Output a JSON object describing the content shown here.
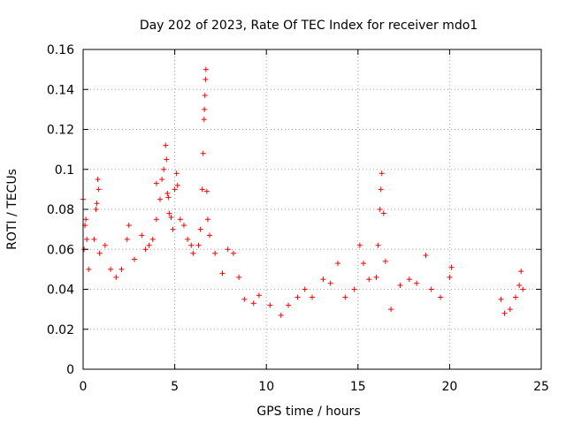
{
  "chart_data": {
    "type": "scatter",
    "title": "Day 202 of 2023, Rate Of TEC Index for receiver mdo1",
    "xlabel": "GPS time / hours",
    "ylabel": "ROTI / TECUs",
    "xlim": [
      0,
      25
    ],
    "ylim": [
      0,
      0.16
    ],
    "xticks": [
      0,
      5,
      10,
      15,
      20,
      25
    ],
    "xtick_labels": [
      "0",
      "5",
      "10",
      "15",
      "20",
      "25"
    ],
    "yticks": [
      0,
      0.02,
      0.04,
      0.06,
      0.08,
      0.1,
      0.12,
      0.14,
      0.16
    ],
    "ytick_labels": [
      "0",
      "0.02",
      "0.04",
      "0.06",
      "0.08",
      "0.1",
      "0.12",
      "0.14",
      "0.16"
    ],
    "grid": true,
    "marker": "plus",
    "color": "#ff0000",
    "series": [
      {
        "points": [
          [
            0.0,
            0.085
          ],
          [
            0.05,
            0.06
          ],
          [
            0.1,
            0.072
          ],
          [
            0.15,
            0.075
          ],
          [
            0.2,
            0.065
          ],
          [
            0.3,
            0.05
          ],
          [
            0.6,
            0.065
          ],
          [
            0.7,
            0.08
          ],
          [
            0.75,
            0.083
          ],
          [
            0.8,
            0.095
          ],
          [
            0.85,
            0.09
          ],
          [
            0.9,
            0.058
          ],
          [
            1.2,
            0.062
          ],
          [
            1.5,
            0.05
          ],
          [
            1.8,
            0.046
          ],
          [
            2.1,
            0.05
          ],
          [
            2.4,
            0.065
          ],
          [
            2.5,
            0.072
          ],
          [
            2.8,
            0.055
          ],
          [
            3.2,
            0.067
          ],
          [
            3.4,
            0.06
          ],
          [
            3.6,
            0.062
          ],
          [
            3.8,
            0.065
          ],
          [
            4.0,
            0.075
          ],
          [
            4.0,
            0.093
          ],
          [
            4.2,
            0.085
          ],
          [
            4.3,
            0.095
          ],
          [
            4.4,
            0.1
          ],
          [
            4.5,
            0.112
          ],
          [
            4.55,
            0.105
          ],
          [
            4.6,
            0.088
          ],
          [
            4.65,
            0.086
          ],
          [
            4.7,
            0.078
          ],
          [
            4.8,
            0.076
          ],
          [
            4.9,
            0.07
          ],
          [
            5.0,
            0.09
          ],
          [
            5.1,
            0.098
          ],
          [
            5.15,
            0.092
          ],
          [
            5.3,
            0.075
          ],
          [
            5.5,
            0.072
          ],
          [
            5.7,
            0.065
          ],
          [
            5.9,
            0.062
          ],
          [
            6.0,
            0.058
          ],
          [
            6.3,
            0.062
          ],
          [
            6.4,
            0.07
          ],
          [
            6.5,
            0.09
          ],
          [
            6.55,
            0.108
          ],
          [
            6.6,
            0.125
          ],
          [
            6.62,
            0.13
          ],
          [
            6.65,
            0.137
          ],
          [
            6.68,
            0.145
          ],
          [
            6.7,
            0.15
          ],
          [
            6.75,
            0.089
          ],
          [
            6.8,
            0.075
          ],
          [
            6.9,
            0.067
          ],
          [
            7.2,
            0.058
          ],
          [
            7.6,
            0.048
          ],
          [
            7.9,
            0.06
          ],
          [
            8.2,
            0.058
          ],
          [
            8.5,
            0.046
          ],
          [
            8.8,
            0.035
          ],
          [
            9.3,
            0.033
          ],
          [
            9.6,
            0.037
          ],
          [
            10.2,
            0.032
          ],
          [
            10.8,
            0.027
          ],
          [
            11.2,
            0.032
          ],
          [
            11.7,
            0.036
          ],
          [
            12.1,
            0.04
          ],
          [
            12.5,
            0.036
          ],
          [
            13.1,
            0.045
          ],
          [
            13.5,
            0.043
          ],
          [
            13.9,
            0.053
          ],
          [
            14.3,
            0.036
          ],
          [
            14.8,
            0.04
          ],
          [
            15.1,
            0.062
          ],
          [
            15.3,
            0.053
          ],
          [
            15.6,
            0.045
          ],
          [
            16.0,
            0.046
          ],
          [
            16.1,
            0.062
          ],
          [
            16.2,
            0.08
          ],
          [
            16.25,
            0.09
          ],
          [
            16.3,
            0.098
          ],
          [
            16.4,
            0.078
          ],
          [
            16.5,
            0.054
          ],
          [
            16.8,
            0.03
          ],
          [
            17.3,
            0.042
          ],
          [
            17.8,
            0.045
          ],
          [
            18.2,
            0.043
          ],
          [
            18.7,
            0.057
          ],
          [
            19.0,
            0.04
          ],
          [
            19.5,
            0.036
          ],
          [
            20.0,
            0.046
          ],
          [
            20.1,
            0.051
          ],
          [
            22.8,
            0.035
          ],
          [
            23.0,
            0.028
          ],
          [
            23.3,
            0.03
          ],
          [
            23.6,
            0.036
          ],
          [
            23.8,
            0.042
          ],
          [
            23.9,
            0.049
          ],
          [
            24.0,
            0.04
          ]
        ]
      }
    ]
  }
}
